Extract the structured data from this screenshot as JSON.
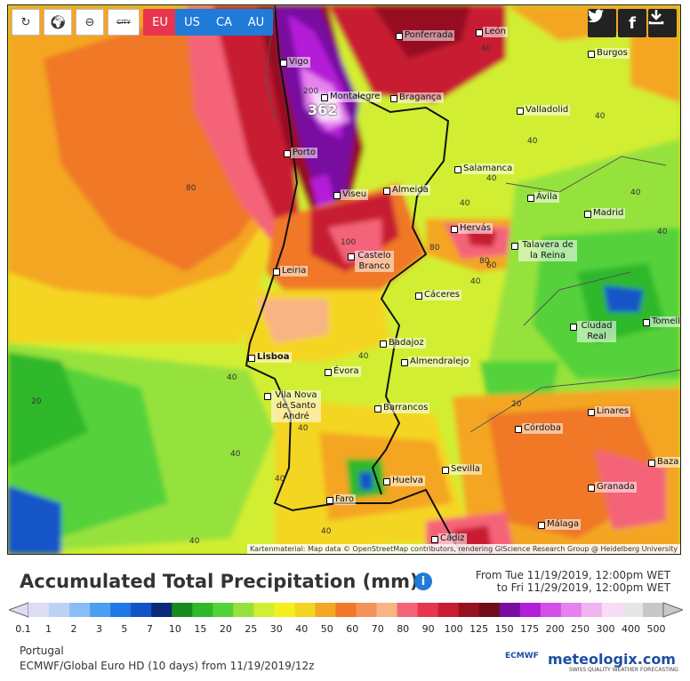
{
  "toolbar": {
    "city_label": "CITY",
    "regions": [
      {
        "label": "EU",
        "color": "#e8354f"
      },
      {
        "label": "US",
        "color": "#1f7ad8"
      },
      {
        "label": "CA",
        "color": "#1f7ad8"
      },
      {
        "label": "AU",
        "color": "#1f7ad8"
      }
    ]
  },
  "map": {
    "attribution": "Kartenmaterial: Map data © OpenStreetMap contributors, rendering GIScience Research Group @ Heidelberg University",
    "cities": [
      {
        "name": "Vigo",
        "cls": ""
      },
      {
        "name": "Ponferrada",
        "cls": ""
      },
      {
        "name": "León",
        "cls": ""
      },
      {
        "name": "Burgos",
        "cls": ""
      },
      {
        "name": "Montalegre",
        "cls": ""
      },
      {
        "name": "Bragança",
        "cls": ""
      },
      {
        "name": "Valladolid",
        "cls": ""
      },
      {
        "name": "Porto",
        "cls": ""
      },
      {
        "name": "Salamanca",
        "cls": ""
      },
      {
        "name": "Viseu",
        "cls": ""
      },
      {
        "name": "Almeida",
        "cls": ""
      },
      {
        "name": "Ávila",
        "cls": ""
      },
      {
        "name": "Madrid",
        "cls": ""
      },
      {
        "name": "Hervás",
        "cls": ""
      },
      {
        "name": "Talavera de la Reina",
        "cls": ""
      },
      {
        "name": "Castelo Branco",
        "cls": ""
      },
      {
        "name": "Leiria",
        "cls": ""
      },
      {
        "name": "Cáceres",
        "cls": ""
      },
      {
        "name": "Ciudad Real",
        "cls": ""
      },
      {
        "name": "Tomelloso",
        "cls": ""
      },
      {
        "name": "Badajoz",
        "cls": ""
      },
      {
        "name": "Lisboa",
        "cls": "citybig"
      },
      {
        "name": "Almendralejo",
        "cls": ""
      },
      {
        "name": "Évora",
        "cls": ""
      },
      {
        "name": "Vila Nova de Santo André",
        "cls": ""
      },
      {
        "name": "Barrancos",
        "cls": ""
      },
      {
        "name": "Linares",
        "cls": ""
      },
      {
        "name": "Córdoba",
        "cls": ""
      },
      {
        "name": "Sevilla",
        "cls": ""
      },
      {
        "name": "Baza",
        "cls": ""
      },
      {
        "name": "Huelva",
        "cls": ""
      },
      {
        "name": "Granada",
        "cls": ""
      },
      {
        "name": "Faro",
        "cls": ""
      },
      {
        "name": "Málaga",
        "cls": ""
      },
      {
        "name": "Cádiz",
        "cls": ""
      }
    ],
    "contour_labels": [
      "362",
      "200",
      "100",
      "80",
      "80",
      "80",
      "60",
      "40",
      "40",
      "40",
      "40",
      "40",
      "40",
      "40",
      "40",
      "40",
      "40",
      "40",
      "40",
      "20",
      "20",
      "40",
      "40",
      "40"
    ]
  },
  "title": "Accumulated Total Precipitation (mm)",
  "dates": {
    "from": "From Tue 11/19/2019, 12:00pm WET",
    "to": "to Fri 11/29/2019, 12:00pm WET"
  },
  "legend": {
    "colors": [
      "#dcdcf5",
      "#bcd2f5",
      "#8cbcf5",
      "#4a9ff0",
      "#1e78e6",
      "#1254c8",
      "#0a2a78",
      "#168a1c",
      "#2eb82a",
      "#55d23a",
      "#96e23c",
      "#d2ee32",
      "#f4f01e",
      "#f4d620",
      "#f4a624",
      "#f07828",
      "#f4945a",
      "#f8b482",
      "#f46478",
      "#e8364e",
      "#c81e32",
      "#961020",
      "#6e0c18",
      "#780ca0",
      "#b41ed8",
      "#d250e8",
      "#e682f0",
      "#f0b4f0",
      "#f8dcf8",
      "#e6e6e6",
      "#c8c8c8"
    ],
    "ticks": [
      "0.1",
      "1",
      "2",
      "3",
      "5",
      "7",
      "10",
      "15",
      "20",
      "25",
      "30",
      "40",
      "50",
      "60",
      "70",
      "80",
      "90",
      "100",
      "125",
      "150",
      "175",
      "200",
      "250",
      "300",
      "400",
      "500"
    ]
  },
  "footer": {
    "region": "Portugal",
    "model": "ECMWF/Global Euro HD  (10 days)  from 11/19/2019/12z",
    "ecmwf": "ECMWF",
    "brand": "meteologix.com",
    "tagline": "SWISS QUALITY WEATHER FORECASTING"
  }
}
